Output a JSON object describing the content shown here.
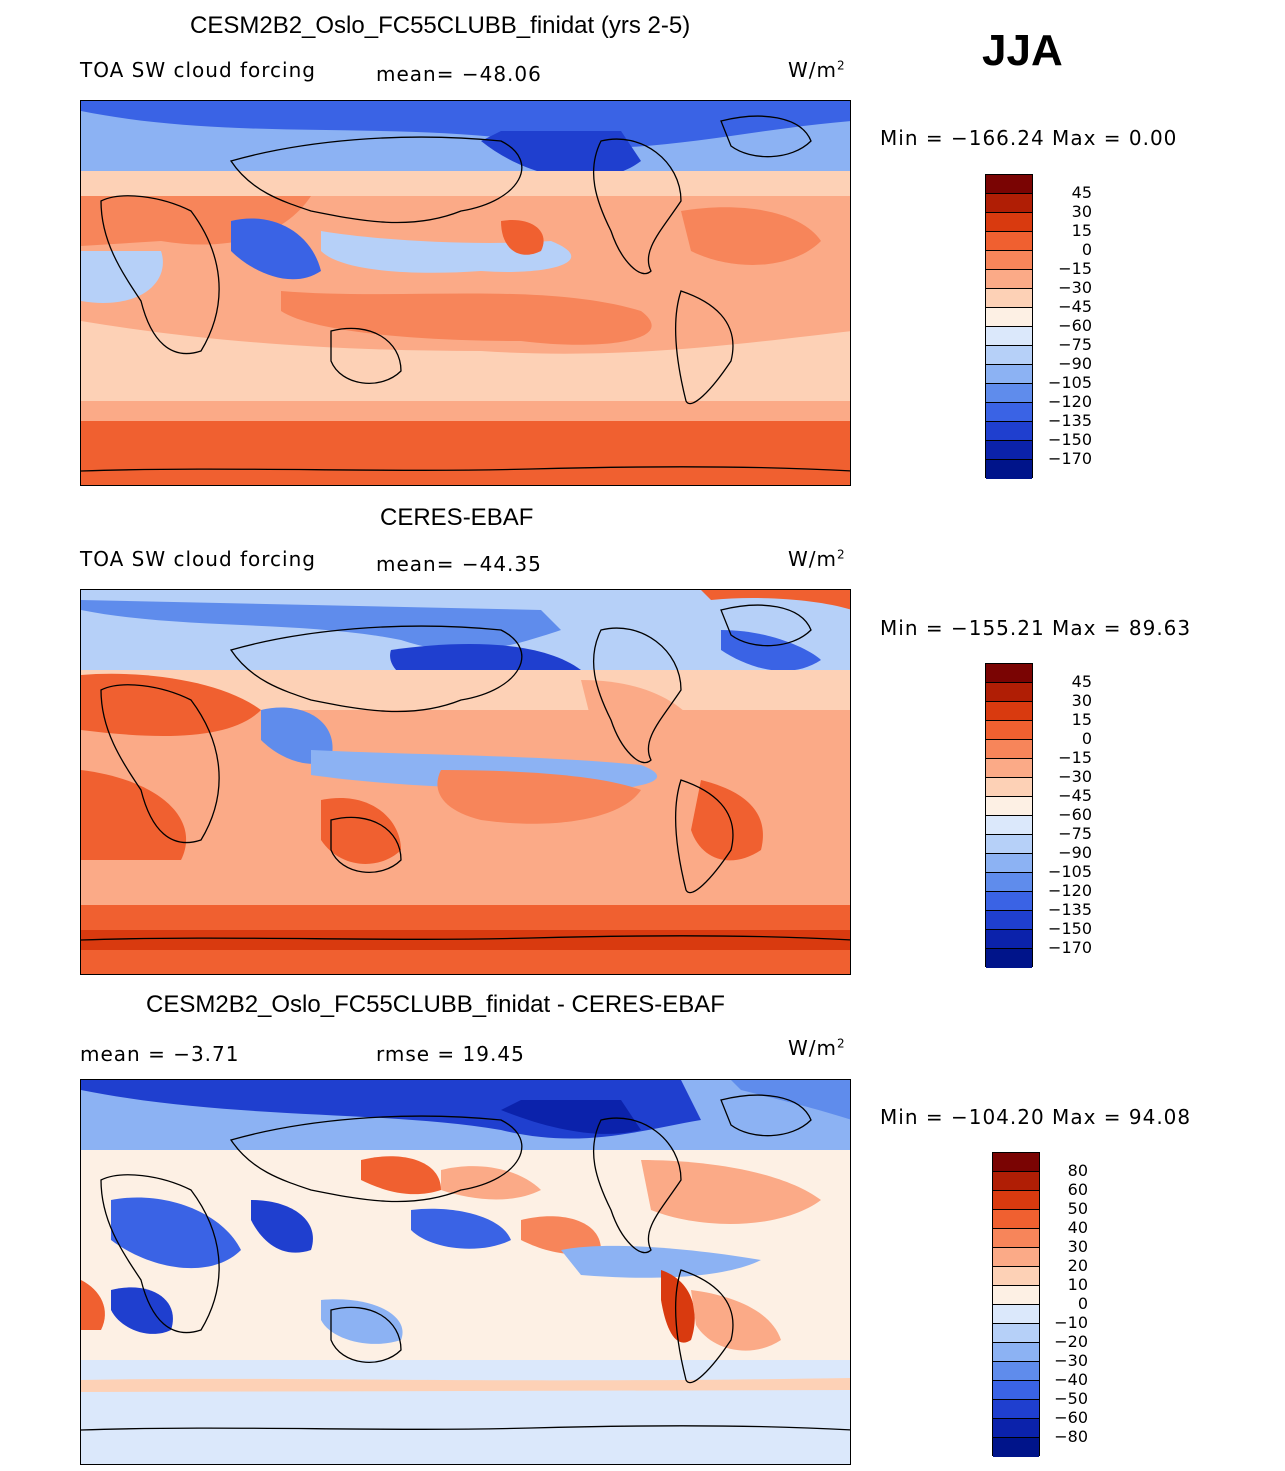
{
  "season": "JJA",
  "panels": [
    {
      "title": "CESM2B2_Oslo_FC55CLUBB_finidat (yrs 2-5)",
      "left_label": "TOA SW cloud forcing",
      "center_label": "mean=  −48.06",
      "units": "W/m",
      "units_exp": "2",
      "minmax": "Min = −166.24 Max =    0.00",
      "colorbar_labels": [
        "45",
        "30",
        "15",
        "0",
        "−15",
        "−30",
        "−45",
        "−60",
        "−75",
        "−90",
        "−105",
        "−120",
        "−135",
        "−150",
        "−170"
      ]
    },
    {
      "title": "CERES-EBAF",
      "left_label": "TOA SW cloud forcing",
      "center_label": "mean=  −44.35",
      "units": "W/m",
      "units_exp": "2",
      "minmax": "Min = −155.21 Max =   89.63",
      "colorbar_labels": [
        "45",
        "30",
        "15",
        "0",
        "−15",
        "−30",
        "−45",
        "−60",
        "−75",
        "−90",
        "−105",
        "−120",
        "−135",
        "−150",
        "−170"
      ]
    },
    {
      "title": "CESM2B2_Oslo_FC55CLUBB_finidat - CERES-EBAF",
      "left_label": "mean =   −3.71",
      "center_label": "rmse =   19.45",
      "units": "W/m",
      "units_exp": "2",
      "minmax": "Min = −104.20 Max =  94.08",
      "colorbar_labels": [
        "80",
        "60",
        "50",
        "40",
        "30",
        "20",
        "10",
        "0",
        "−10",
        "−20",
        "−30",
        "−40",
        "−50",
        "−60",
        "−80"
      ]
    }
  ],
  "colors": {
    "abs_scale": [
      "#7a0403",
      "#b01e05",
      "#d93a0f",
      "#f06030",
      "#f7855a",
      "#fbaa87",
      "#fdd1b6",
      "#fdf0e4",
      "#dbe8fb",
      "#b6d0f8",
      "#8cb2f3",
      "#5f8cec",
      "#3a63e5",
      "#1f3fcf",
      "#0b22ab",
      "#00148a"
    ],
    "diff_scale": [
      "#7a0403",
      "#b01e05",
      "#d93a0f",
      "#f06030",
      "#f7855a",
      "#fbaa87",
      "#fdd1b6",
      "#fdf0e4",
      "#dbe8fb",
      "#b6d0f8",
      "#8cb2f3",
      "#5f8cec",
      "#3a63e5",
      "#1f3fcf",
      "#0b22ab",
      "#00148a"
    ]
  }
}
